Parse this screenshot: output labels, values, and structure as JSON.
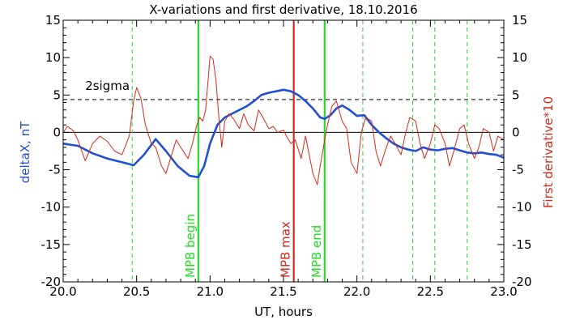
{
  "chart_data": {
    "type": "line",
    "title": "X-variations and first derivative, 18.10.2016",
    "xlabel": "UT, hours",
    "ylabel_left": "deltaX, nT",
    "ylabel_right": "First derivative*10",
    "xlim": [
      20.0,
      23.0
    ],
    "ylim": [
      -20,
      15
    ],
    "x_ticks": [
      "20.0",
      "20.5",
      "21.0",
      "21.5",
      "22.0",
      "22.5",
      "23.0"
    ],
    "x_tick_values": [
      20.0,
      20.5,
      21.0,
      21.5,
      22.0,
      22.5,
      23.0
    ],
    "y_ticks": [
      "-20",
      "-15",
      "-10",
      "-5",
      "0",
      "5",
      "10",
      "15"
    ],
    "y_tick_values": [
      -20,
      -15,
      -10,
      -5,
      0,
      5,
      10,
      15
    ],
    "sigma_level": 4.4,
    "sigma_label": "2sigma",
    "series": [
      {
        "name": "deltaX, nT",
        "color": "#1f4fd6",
        "x": [
          20.0,
          20.1,
          20.2,
          20.3,
          20.4,
          20.48,
          20.55,
          20.63,
          20.7,
          20.78,
          20.86,
          20.92,
          20.96,
          21.0,
          21.05,
          21.1,
          21.15,
          21.2,
          21.25,
          21.3,
          21.35,
          21.4,
          21.45,
          21.5,
          21.55,
          21.6,
          21.65,
          21.7,
          21.75,
          21.78,
          21.82,
          21.86,
          21.9,
          21.95,
          22.0,
          22.05,
          22.1,
          22.15,
          22.2,
          22.25,
          22.3,
          22.35,
          22.4,
          22.45,
          22.5,
          22.55,
          22.6,
          22.65,
          22.7,
          22.75,
          22.8,
          22.85,
          22.9,
          22.95,
          23.0
        ],
        "y": [
          -1.5,
          -1.8,
          -2.8,
          -3.5,
          -4.0,
          -4.4,
          -3.0,
          -0.9,
          -2.5,
          -4.5,
          -5.8,
          -6.0,
          -4.5,
          -1.5,
          1.0,
          2.0,
          2.5,
          3.0,
          3.5,
          4.2,
          5.0,
          5.3,
          5.5,
          5.7,
          5.5,
          5.0,
          4.2,
          3.2,
          2.0,
          1.8,
          2.3,
          3.2,
          3.6,
          3.0,
          2.2,
          2.3,
          1.0,
          0.0,
          -0.8,
          -1.5,
          -2.0,
          -2.3,
          -2.5,
          -2.0,
          -2.3,
          -2.4,
          -2.2,
          -2.1,
          -2.4,
          -2.7,
          -2.8,
          -2.7,
          -2.9,
          -3.0,
          -3.4
        ]
      },
      {
        "name": "First derivative*10",
        "color": "#d42a1a",
        "x": [
          20.0,
          20.03,
          20.07,
          20.1,
          20.15,
          20.2,
          20.25,
          20.3,
          20.35,
          20.4,
          20.45,
          20.48,
          20.5,
          20.53,
          20.56,
          20.6,
          20.63,
          20.67,
          20.7,
          20.73,
          20.77,
          20.8,
          20.85,
          20.88,
          20.91,
          20.93,
          20.95,
          20.97,
          21.0,
          21.02,
          21.04,
          21.06,
          21.08,
          21.1,
          21.13,
          21.16,
          21.2,
          21.23,
          21.26,
          21.3,
          21.33,
          21.36,
          21.4,
          21.43,
          21.46,
          21.5,
          21.52,
          21.55,
          21.58,
          21.62,
          21.65,
          21.7,
          21.73,
          21.75,
          21.78,
          21.8,
          21.83,
          21.86,
          21.9,
          21.93,
          21.96,
          22.0,
          22.03,
          22.06,
          22.1,
          22.13,
          22.16,
          22.2,
          22.23,
          22.26,
          22.3,
          22.33,
          22.36,
          22.4,
          22.43,
          22.46,
          22.5,
          22.53,
          22.56,
          22.6,
          22.63,
          22.66,
          22.7,
          22.73,
          22.76,
          22.8,
          22.83,
          22.86,
          22.9,
          22.93,
          22.96,
          23.0
        ],
        "y": [
          0.0,
          0.8,
          0.2,
          -1.0,
          -3.8,
          -1.5,
          -0.5,
          -1.2,
          -2.5,
          -3.0,
          -0.5,
          4.2,
          6.0,
          4.5,
          1.0,
          -1.5,
          -2.0,
          -4.5,
          -5.5,
          -3.5,
          -1.0,
          -2.0,
          -3.5,
          -1.5,
          1.0,
          2.0,
          1.5,
          3.0,
          10.2,
          9.8,
          7.0,
          2.0,
          -2.0,
          1.5,
          2.5,
          1.8,
          0.5,
          2.5,
          1.0,
          0.2,
          3.0,
          2.0,
          0.5,
          0.8,
          0.0,
          0.3,
          -0.5,
          -1.5,
          -1.0,
          -3.5,
          -0.5,
          -5.5,
          -7.0,
          -4.5,
          -1.0,
          1.0,
          3.5,
          4.2,
          1.5,
          0.5,
          -4.0,
          -5.5,
          0.0,
          2.0,
          1.5,
          -2.5,
          -4.5,
          -2.0,
          -0.5,
          -1.5,
          -3.0,
          -0.2,
          2.0,
          1.5,
          -1.5,
          -3.5,
          -1.5,
          1.0,
          0.5,
          -1.5,
          -4.5,
          -2.5,
          0.5,
          1.0,
          -1.5,
          -3.5,
          -2.0,
          0.5,
          0.0,
          -2.5,
          -0.5,
          -1.0
        ]
      }
    ],
    "markers": [
      {
        "x": 20.47,
        "style": "dashed",
        "color": "#33cc33",
        "label": ""
      },
      {
        "x": 20.92,
        "style": "solid",
        "color": "#22dd22",
        "label": "MPB begin"
      },
      {
        "x": 21.57,
        "style": "solid",
        "color": "#d42a1a",
        "label": "MPB max"
      },
      {
        "x": 21.78,
        "style": "solid",
        "color": "#22dd22",
        "label": "MPB end"
      },
      {
        "x": 22.04,
        "style": "dashed",
        "color": "#33cc33",
        "label": ""
      },
      {
        "x": 22.38,
        "style": "dashed",
        "color": "#33cc33",
        "label": ""
      },
      {
        "x": 22.53,
        "style": "dashed",
        "color": "#33cc33",
        "label": ""
      },
      {
        "x": 22.75,
        "style": "dashed",
        "color": "#33cc33",
        "label": ""
      }
    ]
  }
}
